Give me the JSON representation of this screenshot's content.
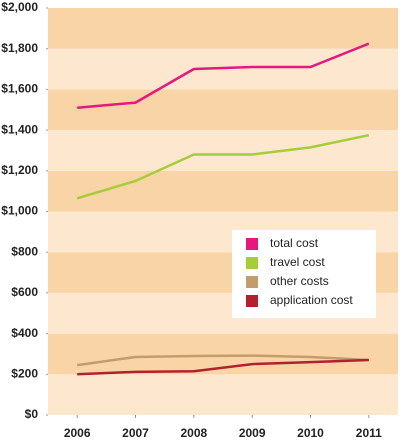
{
  "chart_data": {
    "type": "line",
    "x": [
      2006,
      2007,
      2008,
      2009,
      2010,
      2011
    ],
    "series": [
      {
        "name": "total cost",
        "color": "#e6177f",
        "values": [
          1510,
          1535,
          1700,
          1710,
          1710,
          1825
        ]
      },
      {
        "name": "travel cost",
        "color": "#a5cd39",
        "values": [
          1065,
          1150,
          1280,
          1280,
          1315,
          1375
        ]
      },
      {
        "name": "other costs",
        "color": "#c39c6e",
        "values": [
          245,
          285,
          290,
          292,
          285,
          270
        ]
      },
      {
        "name": "application cost",
        "color": "#b3202f",
        "values": [
          200,
          212,
          215,
          250,
          260,
          270
        ]
      }
    ],
    "xlim": [
      2005.5,
      2011.5
    ],
    "xticks": [
      2006,
      2007,
      2008,
      2009,
      2010,
      2011
    ],
    "ylim": [
      0,
      2000
    ],
    "yticks": [
      {
        "value": 0,
        "label": "$0"
      },
      {
        "value": 200,
        "label": "$200"
      },
      {
        "value": 400,
        "label": "$400"
      },
      {
        "value": 600,
        "label": "$600"
      },
      {
        "value": 800,
        "label": "$800"
      },
      {
        "value": 1000,
        "label": "$1,000"
      },
      {
        "value": 1200,
        "label": "$1,200"
      },
      {
        "value": 1400,
        "label": "$1,400"
      },
      {
        "value": 1600,
        "label": "$1,600"
      },
      {
        "value": 1800,
        "label": "$1,800"
      },
      {
        "value": 2000,
        "label": "$2,000"
      }
    ],
    "band_colors": [
      "#fde8cf",
      "#f9d4a6"
    ],
    "legend": "center-right"
  }
}
